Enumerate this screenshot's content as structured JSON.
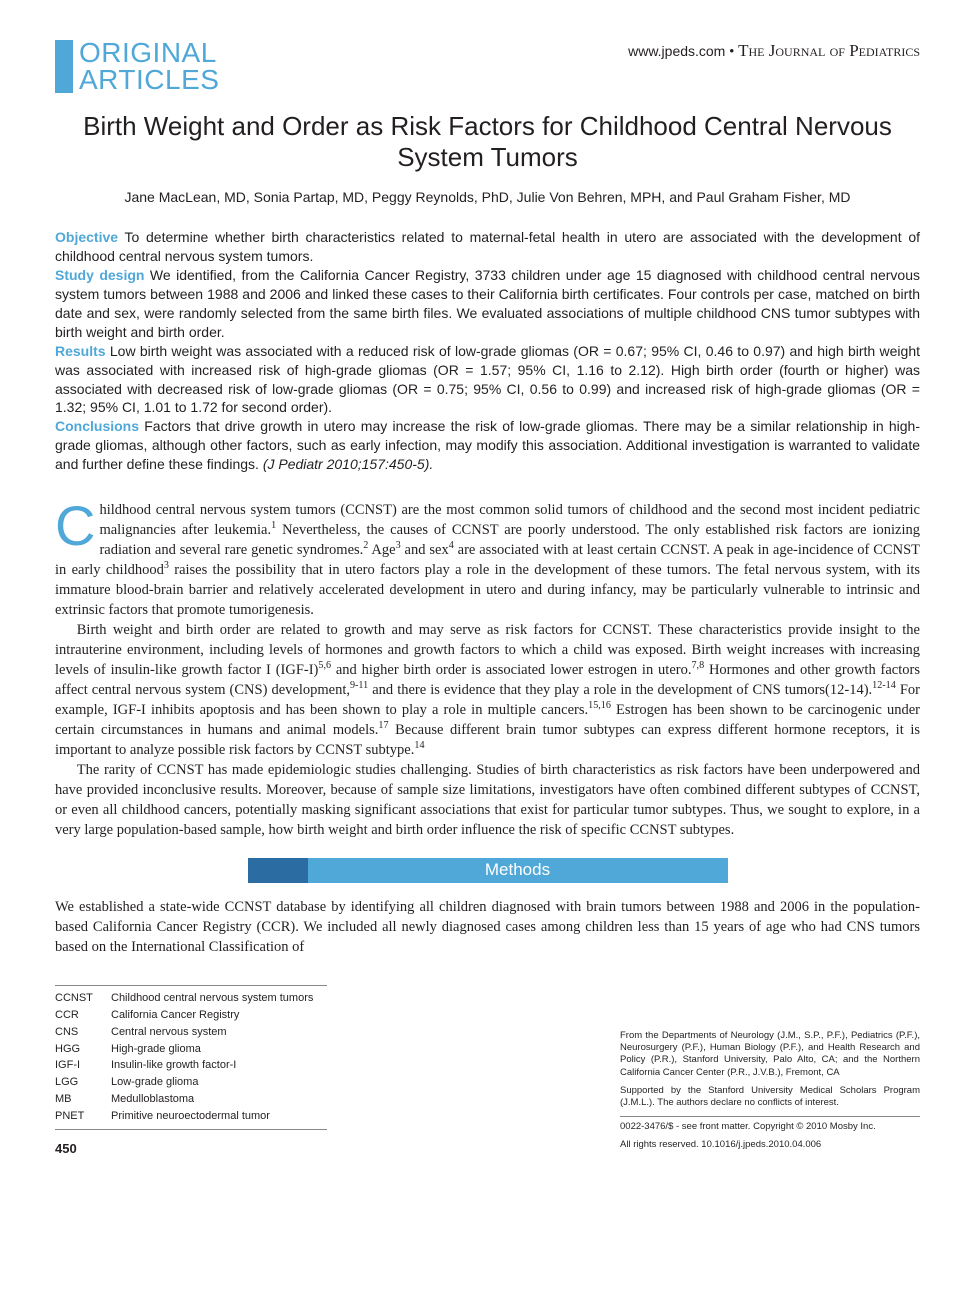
{
  "header": {
    "section_label_line1": "ORIGINAL",
    "section_label_line2": "ARTICLES",
    "journal_url": "www.jpeds.com",
    "journal_separator": " • ",
    "journal_name": "The Journal of Pediatrics"
  },
  "title": "Birth Weight and Order as Risk Factors for Childhood Central Nervous System Tumors",
  "authors": "Jane MacLean, MD, Sonia Partap, MD, Peggy Reynolds, PhD, Julie Von Behren, MPH, and Paul Graham Fisher, MD",
  "abstract": {
    "objective_label": "Objective",
    "objective_text": " To determine whether birth characteristics related to maternal-fetal health in utero are associated with the development of childhood central nervous system tumors.",
    "study_design_label": "Study design",
    "study_design_text": " We identified, from the California Cancer Registry, 3733 children under age 15 diagnosed with childhood central nervous system tumors between 1988 and 2006 and linked these cases to their California birth certificates. Four controls per case, matched on birth date and sex, were randomly selected from the same birth files. We evaluated associations of multiple childhood CNS tumor subtypes with birth weight and birth order.",
    "results_label": "Results",
    "results_text": " Low birth weight was associated with a reduced risk of low-grade gliomas (OR = 0.67; 95% CI, 0.46 to 0.97) and high birth weight was associated with increased risk of high-grade gliomas (OR = 1.57; 95% CI, 1.16 to 2.12). High birth order (fourth or higher) was associated with decreased risk of low-grade gliomas (OR = 0.75; 95% CI, 0.56 to 0.99) and increased risk of high-grade gliomas (OR = 1.32; 95% CI, 1.01 to 1.72 for second order).",
    "conclusions_label": "Conclusions",
    "conclusions_text": " Factors that drive growth in utero may increase the risk of low-grade gliomas. There may be a similar relationship in high-grade gliomas, although other factors, such as early infection, may modify this association. Additional investigation is warranted to validate and further define these findings. ",
    "citation": "(J Pediatr 2010;157:450-5)."
  },
  "body": {
    "dropcap": "C",
    "p1_after_dropcap": "hildhood central nervous system tumors (CCNST) are the most common solid tumors of childhood and the second most incident pediatric malignancies after leukemia.",
    "p1_ref1": "1",
    "p1_cont1": " Nevertheless, the causes of CCNST are poorly understood. The only established risk factors are ionizing radiation and several rare genetic syndromes.",
    "p1_ref2": "2",
    "p1_cont2": " Age",
    "p1_ref3": "3",
    "p1_cont3": " and sex",
    "p1_ref4": "4",
    "p1_cont4": " are associated with at least certain CCNST. A peak in age-incidence of CCNST in early childhood",
    "p1_ref5": "3",
    "p1_cont5": " raises the possibility that in utero factors play a role in the development of these tumors. The fetal nervous system, with its immature blood-brain barrier and relatively accelerated development in utero and during infancy, may be particularly vulnerable to intrinsic and extrinsic factors that promote tumorigenesis.",
    "p2_a": "Birth weight and birth order are related to growth and may serve as risk factors for CCNST. These characteristics provide insight to the intrauterine environment, including levels of hormones and growth factors to which a child was exposed. Birth weight increases with increasing levels of insulin-like growth factor I (IGF-I)",
    "p2_ref1": "5,6",
    "p2_b": " and higher birth order is associated lower estrogen in utero.",
    "p2_ref2": "7,8",
    "p2_c": " Hormones and other growth factors affect central nervous system (CNS) development,",
    "p2_ref3": "9-11",
    "p2_d": " and there is evidence that they play a role in the development of CNS tumors(12-14).",
    "p2_ref4": "12-14",
    "p2_e": " For example, IGF-I inhibits apoptosis and has been shown to play a role in multiple cancers.",
    "p2_ref5": "15,16",
    "p2_f": " Estrogen has been shown to be carcinogenic under certain circumstances in humans and animal models.",
    "p2_ref6": "17",
    "p2_g": " Because different brain tumor subtypes can express different hormone receptors, it is important to analyze possible risk factors by CCNST subtype.",
    "p2_ref7": "14",
    "p3": "The rarity of CCNST has made epidemiologic studies challenging. Studies of birth characteristics as risk factors have been underpowered and have provided inconclusive results. Moreover, because of sample size limitations, investigators have often combined different subtypes of CCNST, or even all childhood cancers, potentially masking significant associations that exist for particular tumor subtypes. Thus, we sought to explore, in a very large population-based sample, how birth weight and birth order influence the risk of specific CCNST subtypes."
  },
  "methods": {
    "heading": "Methods",
    "p1": "We established a state-wide CCNST database by identifying all children diagnosed with brain tumors between 1988 and 2006 in the population-based California Cancer Registry (CCR). We included all newly diagnosed cases among children less than 15 years of age who had CNS tumors based on the International Classification of"
  },
  "abbreviations": {
    "rows": [
      [
        "CCNST",
        "Childhood central nervous system tumors"
      ],
      [
        "CCR",
        "California Cancer Registry"
      ],
      [
        "CNS",
        "Central nervous system"
      ],
      [
        "HGG",
        "High-grade glioma"
      ],
      [
        "IGF-I",
        "Insulin-like growth factor-I"
      ],
      [
        "LGG",
        "Low-grade glioma"
      ],
      [
        "MB",
        "Medulloblastoma"
      ],
      [
        "PNET",
        "Primitive neuroectodermal tumor"
      ]
    ]
  },
  "affiliations": {
    "p1": "From the Departments of Neurology (J.M., S.P., P.F.), Pediatrics (P.F.), Neurosurgery (P.F.), Human Biology (P.F.), and Health Research and Policy (P.R.), Stanford University, Palo Alto, CA; and the Northern California Cancer Center (P.R., J.V.B.), Fremont, CA",
    "p2": "Supported by the Stanford University Medical Scholars Program (J.M.L.). The authors declare no conflicts of interest.",
    "p3": "0022-3476/$ - see front matter. Copyright © 2010 Mosby Inc.",
    "p4": "All rights reserved. 10.1016/j.jpeds.2010.04.006"
  },
  "page_number": "450",
  "colors": {
    "brand_light": "#4fa8d8",
    "brand_dark": "#2b6ca3",
    "text": "#231f20"
  }
}
